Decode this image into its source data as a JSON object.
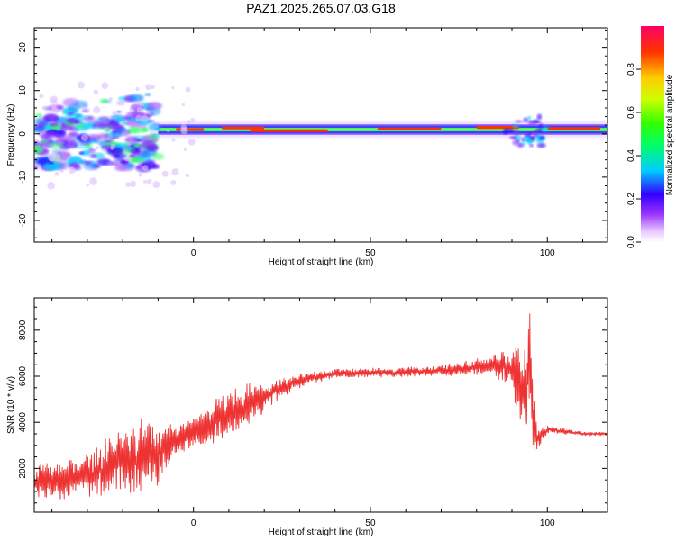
{
  "title": "PAZ1.2025.265.07.03.G18",
  "chart_data": [
    {
      "type": "heatmap",
      "xlabel": "Height of straight line (km)",
      "ylabel": "Frequency (Hz)",
      "xlim": [
        -45,
        117
      ],
      "ylim": [
        -25,
        24.5
      ],
      "xticks": [
        0,
        50,
        100
      ],
      "xtick_labels": [
        "0",
        "50",
        "100"
      ],
      "yticks": [
        -20,
        -10,
        0,
        10,
        20
      ],
      "ytick_labels": [
        "-20",
        "-10",
        "0",
        "10",
        "20"
      ],
      "colorbar": {
        "label": "Normalized spectral amplitude",
        "range": [
          0,
          1
        ],
        "ticks": [
          0.0,
          0.2,
          0.4,
          0.6,
          0.8
        ],
        "tick_labels": [
          "0.0",
          "0.2",
          "0.4",
          "0.6",
          "0.8"
        ]
      },
      "ridge": {
        "description": "dominant frequency band near 0-2 Hz above ~-10 km; scattered energy -8 to +10 Hz below ~-10 km",
        "center_hz": 1.0,
        "scatter_range_hz": [
          -8,
          10
        ]
      }
    },
    {
      "type": "line",
      "xlabel": "Height of straight line (km)",
      "ylabel": "SNR (10 * v/v)",
      "xlim": [
        -45,
        117
      ],
      "ylim": [
        100,
        9400
      ],
      "xticks": [
        0,
        50,
        100
      ],
      "xtick_labels": [
        "0",
        "50",
        "100"
      ],
      "yticks": [
        2000,
        4000,
        6000,
        8000
      ],
      "ytick_labels": [
        "2000",
        "4000",
        "6000",
        "8000"
      ],
      "color": "#ee3333",
      "series": [
        {
          "name": "SNR",
          "x": [
            -45,
            -40,
            -35,
            -30,
            -25,
            -20,
            -15,
            -10,
            -5,
            0,
            5,
            10,
            15,
            20,
            25,
            30,
            35,
            40,
            45,
            50,
            55,
            60,
            65,
            70,
            75,
            80,
            85,
            90,
            92,
            94,
            95,
            96,
            97,
            98,
            100,
            105,
            110,
            117
          ],
          "values": [
            1300,
            1500,
            1500,
            1700,
            2000,
            2300,
            2500,
            2700,
            3200,
            3600,
            4000,
            4300,
            4700,
            5100,
            5500,
            5800,
            6000,
            6100,
            6150,
            6150,
            6150,
            6200,
            6200,
            6250,
            6300,
            6400,
            6500,
            6300,
            5500,
            5200,
            7000,
            4200,
            3200,
            3400,
            3700,
            3600,
            3500,
            3500
          ],
          "noise_amplitude": [
            700,
            700,
            800,
            800,
            1100,
            1200,
            1300,
            1100,
            700,
            500,
            800,
            900,
            800,
            500,
            300,
            250,
            200,
            180,
            170,
            170,
            170,
            180,
            180,
            200,
            250,
            300,
            400,
            800,
            1600,
            2000,
            2200,
            1500,
            700,
            300,
            150,
            100,
            80,
            80
          ]
        }
      ]
    }
  ]
}
